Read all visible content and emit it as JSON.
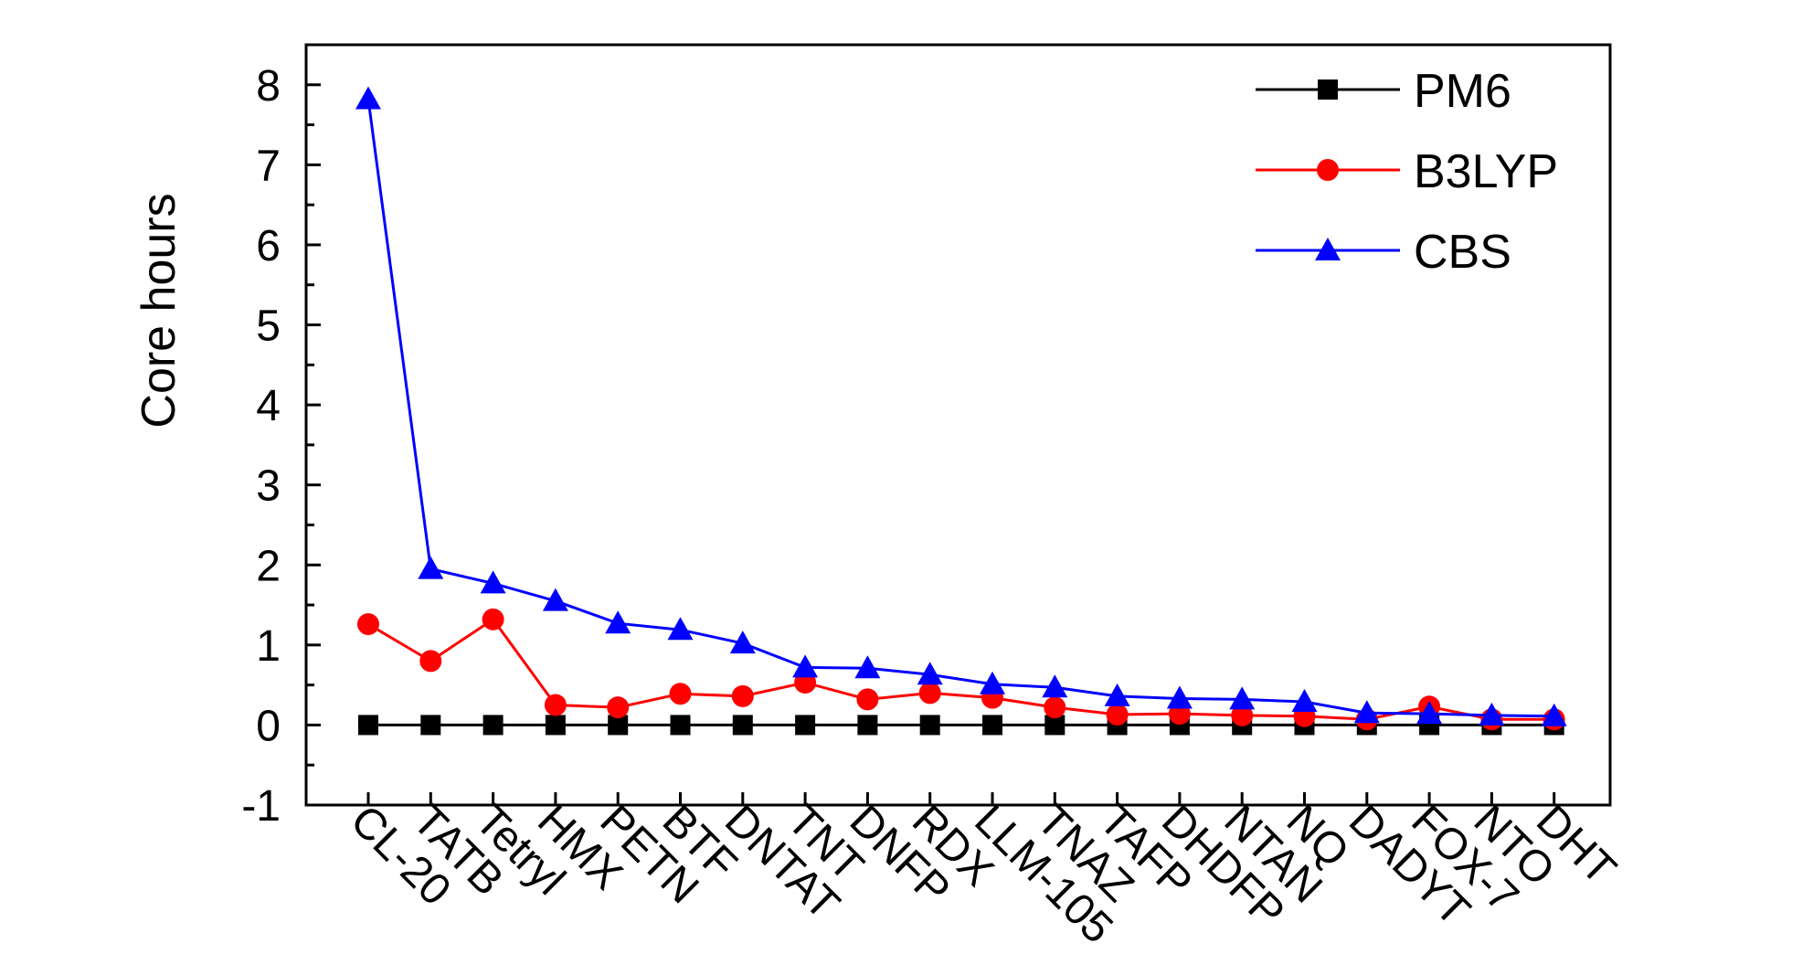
{
  "chart_data": {
    "type": "line",
    "title": "",
    "xlabel": "",
    "ylabel": "Core hours",
    "ylim": [
      -1,
      8.5
    ],
    "yticks": [
      -1,
      0,
      1,
      2,
      3,
      4,
      5,
      6,
      7,
      8
    ],
    "grid": false,
    "legend_position": "top-right",
    "categories": [
      "CL-20",
      "TATB",
      "Tetryl",
      "HMX",
      "PETN",
      "BTF",
      "DNTAT",
      "TNT",
      "DNFP",
      "RDX",
      "LLM-105",
      "TNAZ",
      "TAFP",
      "DHDFP",
      "NTAN",
      "NQ",
      "DADYT",
      "FOX-7",
      "NTO",
      "DHT"
    ],
    "series": [
      {
        "name": "PM6",
        "color": "#000000",
        "marker": "square",
        "values": [
          0,
          0,
          0,
          0,
          0,
          0,
          0,
          0,
          0,
          0,
          0,
          0,
          0,
          0,
          0,
          0,
          0,
          0,
          0,
          0
        ]
      },
      {
        "name": "B3LYP",
        "color": "#ff0000",
        "marker": "circle",
        "values": [
          1.26,
          0.8,
          1.32,
          0.25,
          0.22,
          0.39,
          0.36,
          0.53,
          0.32,
          0.4,
          0.34,
          0.22,
          0.13,
          0.14,
          0.12,
          0.11,
          0.07,
          0.23,
          0.07,
          0.07
        ]
      },
      {
        "name": "CBS",
        "color": "#0000ff",
        "marker": "triangle",
        "values": [
          7.82,
          1.95,
          1.77,
          1.55,
          1.27,
          1.19,
          1.02,
          0.72,
          0.71,
          0.63,
          0.51,
          0.47,
          0.36,
          0.33,
          0.32,
          0.29,
          0.15,
          0.14,
          0.12,
          0.11
        ]
      }
    ]
  }
}
